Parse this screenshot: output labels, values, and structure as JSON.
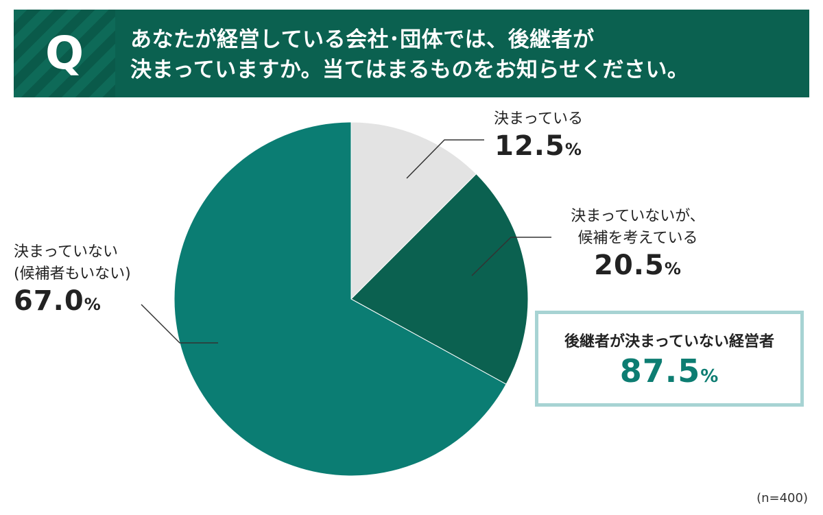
{
  "header": {
    "badge": "Q",
    "question_line1": "あなたが経営している会社･団体では、後継者が",
    "question_line2": "決まっていますか。当てはまるものをお知らせください。"
  },
  "chart_data": {
    "type": "pie",
    "title": "",
    "unit": "%",
    "slices": [
      {
        "label": "決まっている",
        "value": 12.5,
        "value_text": "12.5",
        "color": "#e3e3e3"
      },
      {
        "label_line1": "決まっていないが、",
        "label_line2": "候補を考えている",
        "value": 20.5,
        "value_text": "20.5",
        "color": "#0b6150"
      },
      {
        "label_line1": "決まっていない",
        "label_line2": "(候補者もいない)",
        "value": 67.0,
        "value_text": "67.0",
        "color": "#0b7d73"
      }
    ],
    "summary": {
      "label": "後継者が決まっていない経営者",
      "value": 87.5,
      "value_text": "87.5"
    },
    "legend": "none",
    "note": "(n=400)"
  }
}
